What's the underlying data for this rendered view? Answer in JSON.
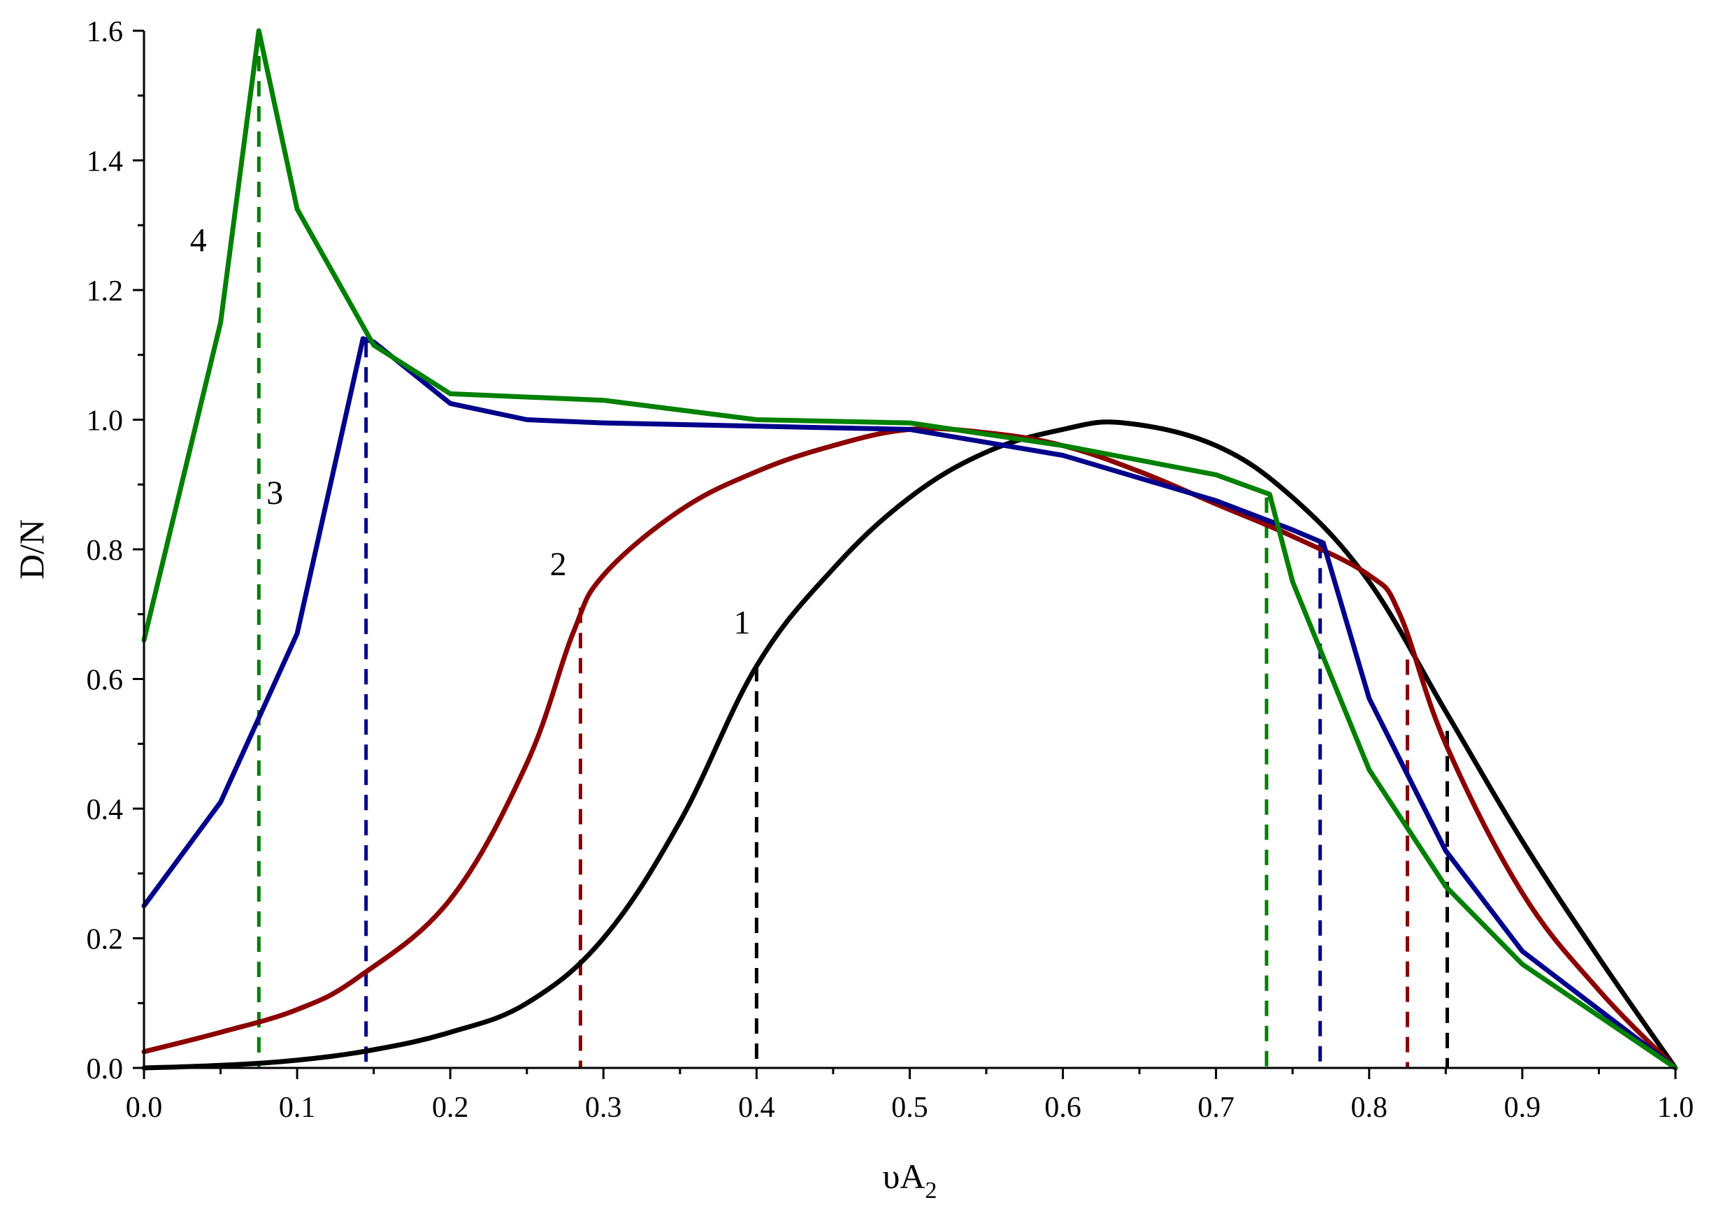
{
  "chart_data": {
    "type": "line",
    "title": "",
    "xlabel": "υA",
    "xlabel_sub": "2",
    "ylabel": "D/N",
    "xlim": [
      0,
      1
    ],
    "ylim": [
      0,
      1.6
    ],
    "grid": false,
    "x_ticks": [
      0.0,
      0.1,
      0.2,
      0.3,
      0.4,
      0.5,
      0.6,
      0.7,
      0.8,
      0.9,
      1.0
    ],
    "x_tick_labels": [
      "0.0",
      "0.1",
      "0.2",
      "0.3",
      "0.4",
      "0.5",
      "0.6",
      "0.7",
      "0.8",
      "0.9",
      "1.0"
    ],
    "y_ticks": [
      0.0,
      0.2,
      0.4,
      0.6,
      0.8,
      1.0,
      1.2,
      1.4,
      1.6
    ],
    "y_tick_labels": [
      "0.0",
      "0.2",
      "0.4",
      "0.6",
      "0.8",
      "1.0",
      "1.2",
      "1.4",
      "1.6"
    ],
    "series": [
      {
        "name": "1",
        "color": "#000000",
        "label_pos": [
          0.385,
          0.67
        ],
        "x": [
          0,
          0.05,
          0.1,
          0.15,
          0.2,
          0.25,
          0.3,
          0.35,
          0.4,
          0.45,
          0.5,
          0.55,
          0.6,
          0.64,
          0.7,
          0.75,
          0.8,
          0.85,
          0.9,
          0.95,
          1.0
        ],
        "y": [
          0,
          0.004,
          0.012,
          0.028,
          0.055,
          0.1,
          0.2,
          0.38,
          0.62,
          0.77,
          0.88,
          0.95,
          0.985,
          0.995,
          0.96,
          0.88,
          0.75,
          0.55,
          0.35,
          0.17,
          0
        ]
      },
      {
        "name": "2",
        "color": "#8b0000",
        "label_pos": [
          0.265,
          0.76
        ],
        "x": [
          0,
          0.05,
          0.1,
          0.14,
          0.2,
          0.25,
          0.28,
          0.3,
          0.35,
          0.4,
          0.45,
          0.5,
          0.55,
          0.6,
          0.65,
          0.7,
          0.75,
          0.8,
          0.82,
          0.85,
          0.9,
          0.95,
          1.0
        ],
        "y": [
          0.025,
          0.055,
          0.09,
          0.14,
          0.26,
          0.47,
          0.67,
          0.76,
          0.86,
          0.92,
          0.96,
          0.985,
          0.98,
          0.96,
          0.92,
          0.87,
          0.82,
          0.76,
          0.7,
          0.5,
          0.27,
          0.12,
          0
        ]
      },
      {
        "name": "3",
        "color": "#00008b",
        "label_pos": [
          0.08,
          0.87
        ],
        "x": [
          0,
          0.05,
          0.1,
          0.143,
          0.15,
          0.2,
          0.25,
          0.3,
          0.4,
          0.5,
          0.6,
          0.7,
          0.75,
          0.77,
          0.8,
          0.85,
          0.9,
          1.0
        ],
        "y": [
          0.25,
          0.41,
          0.67,
          1.125,
          1.12,
          1.025,
          1.0,
          0.995,
          0.99,
          0.985,
          0.945,
          0.875,
          0.83,
          0.81,
          0.57,
          0.335,
          0.18,
          0
        ]
      },
      {
        "name": "4",
        "color": "#008000",
        "label_pos": [
          0.03,
          1.26
        ],
        "x": [
          0,
          0.05,
          0.075,
          0.1,
          0.15,
          0.2,
          0.3,
          0.4,
          0.5,
          0.6,
          0.7,
          0.735,
          0.75,
          0.8,
          0.85,
          0.9,
          1.0
        ],
        "y": [
          0.66,
          1.15,
          1.6,
          1.325,
          1.115,
          1.04,
          1.03,
          1.0,
          0.995,
          0.96,
          0.915,
          0.885,
          0.75,
          0.46,
          0.28,
          0.16,
          0
        ]
      }
    ],
    "annotations": [
      {
        "type": "vline",
        "x": 0.4,
        "y_top": 0.62,
        "color": "#000000"
      },
      {
        "type": "vline",
        "x": 0.285,
        "y_top": 0.71,
        "color": "#8b0000"
      },
      {
        "type": "vline",
        "x": 0.145,
        "y_top": 1.12,
        "color": "#00008b"
      },
      {
        "type": "vline",
        "x": 0.075,
        "y_top": 1.6,
        "color": "#008000"
      },
      {
        "type": "vline",
        "x": 0.733,
        "y_top": 0.88,
        "color": "#008000"
      },
      {
        "type": "vline",
        "x": 0.768,
        "y_top": 0.81,
        "color": "#00008b"
      },
      {
        "type": "vline",
        "x": 0.825,
        "y_top": 0.63,
        "color": "#8b0000"
      },
      {
        "type": "vline",
        "x": 0.851,
        "y_top": 0.52,
        "color": "#000000"
      }
    ]
  }
}
